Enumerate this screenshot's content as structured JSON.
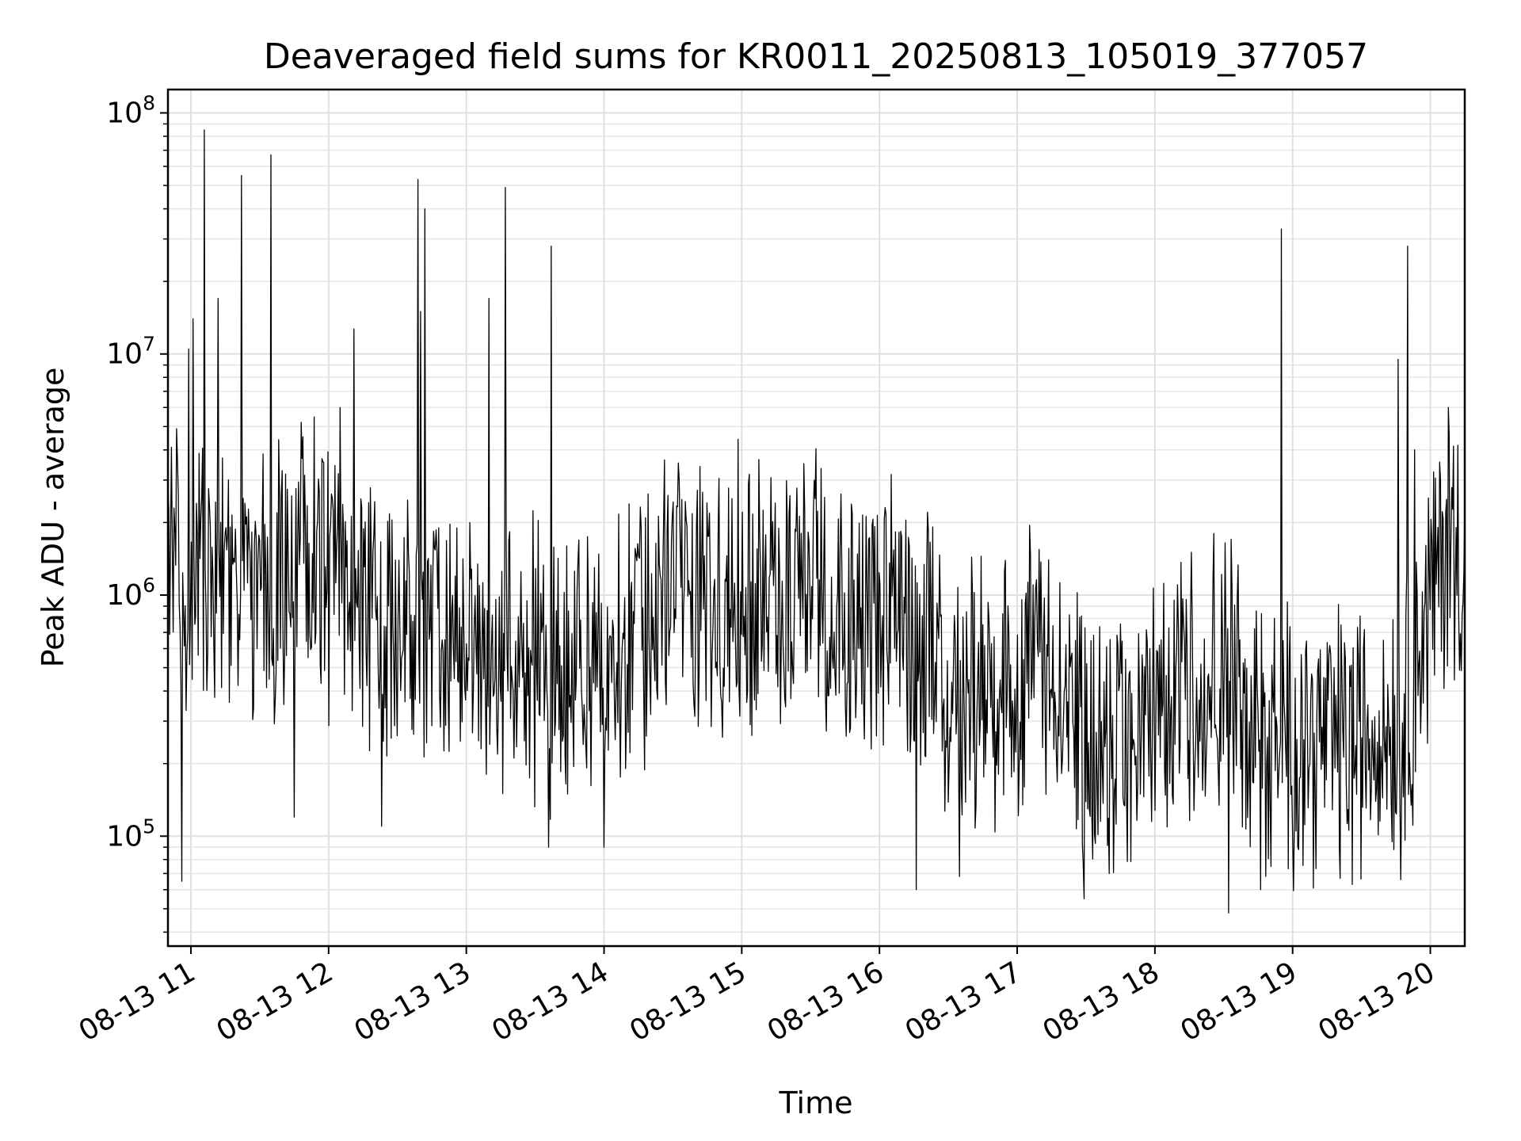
{
  "chart_data": {
    "type": "line",
    "title": "Deaveraged field sums for KR0011_20250813_105019_377057",
    "xlabel": "Time",
    "ylabel": "Peak ADU - average",
    "yscale": "log",
    "ylim": [
      35000,
      125000000
    ],
    "xlim": [
      "2025-08-13 10:50",
      "2025-08-13 20:15"
    ],
    "grid": true,
    "line_color": "#000000",
    "x_ticks": [
      {
        "value": "2025-08-13 11:00",
        "label": "08-13 11"
      },
      {
        "value": "2025-08-13 12:00",
        "label": "08-13 12"
      },
      {
        "value": "2025-08-13 13:00",
        "label": "08-13 13"
      },
      {
        "value": "2025-08-13 14:00",
        "label": "08-13 14"
      },
      {
        "value": "2025-08-13 15:00",
        "label": "08-13 15"
      },
      {
        "value": "2025-08-13 16:00",
        "label": "08-13 16"
      },
      {
        "value": "2025-08-13 17:00",
        "label": "08-13 17"
      },
      {
        "value": "2025-08-13 18:00",
        "label": "08-13 18"
      },
      {
        "value": "2025-08-13 19:00",
        "label": "08-13 19"
      },
      {
        "value": "2025-08-13 20:00",
        "label": "08-13 20"
      }
    ],
    "y_ticks": [
      {
        "value": 100000,
        "base": "10",
        "exp": "5"
      },
      {
        "value": 1000000,
        "base": "10",
        "exp": "6"
      },
      {
        "value": 10000000,
        "base": "10",
        "exp": "7"
      },
      {
        "value": 100000000,
        "base": "10",
        "exp": "8"
      }
    ],
    "baseline": [
      {
        "t": "2025-08-13 10:50",
        "y": 1300000
      },
      {
        "t": "2025-08-13 11:10",
        "y": 1000000
      },
      {
        "t": "2025-08-13 11:30",
        "y": 900000
      },
      {
        "t": "2025-08-13 11:50",
        "y": 1500000
      },
      {
        "t": "2025-08-13 12:10",
        "y": 1000000
      },
      {
        "t": "2025-08-13 12:30",
        "y": 700000
      },
      {
        "t": "2025-08-13 12:50",
        "y": 600000
      },
      {
        "t": "2025-08-13 13:10",
        "y": 600000
      },
      {
        "t": "2025-08-13 13:30",
        "y": 500000
      },
      {
        "t": "2025-08-13 13:50",
        "y": 500000
      },
      {
        "t": "2025-08-13 14:10",
        "y": 600000
      },
      {
        "t": "2025-08-13 14:30",
        "y": 1200000
      },
      {
        "t": "2025-08-13 14:50",
        "y": 1000000
      },
      {
        "t": "2025-08-13 15:10",
        "y": 1000000
      },
      {
        "t": "2025-08-13 15:30",
        "y": 1100000
      },
      {
        "t": "2025-08-13 15:50",
        "y": 900000
      },
      {
        "t": "2025-08-13 16:10",
        "y": 700000
      },
      {
        "t": "2025-08-13 16:30",
        "y": 450000
      },
      {
        "t": "2025-08-13 16:50",
        "y": 350000
      },
      {
        "t": "2025-08-13 17:10",
        "y": 550000
      },
      {
        "t": "2025-08-13 17:30",
        "y": 250000
      },
      {
        "t": "2025-08-13 17:50",
        "y": 200000
      },
      {
        "t": "2025-08-13 18:10",
        "y": 450000
      },
      {
        "t": "2025-08-13 18:30",
        "y": 450000
      },
      {
        "t": "2025-08-13 18:50",
        "y": 250000
      },
      {
        "t": "2025-08-13 19:10",
        "y": 250000
      },
      {
        "t": "2025-08-13 19:30",
        "y": 250000
      },
      {
        "t": "2025-08-13 19:50",
        "y": 350000
      },
      {
        "t": "2025-08-13 20:05",
        "y": 1500000
      },
      {
        "t": "2025-08-13 20:15",
        "y": 1600000
      }
    ],
    "spikes": [
      {
        "t": "2025-08-13 10:59",
        "y": 10500000
      },
      {
        "t": "2025-08-13 11:01",
        "y": 14000000
      },
      {
        "t": "2025-08-13 11:06",
        "y": 85000000
      },
      {
        "t": "2025-08-13 11:12",
        "y": 17000000
      },
      {
        "t": "2025-08-13 11:22",
        "y": 55000000
      },
      {
        "t": "2025-08-13 11:35",
        "y": 67000000
      },
      {
        "t": "2025-08-13 12:05",
        "y": 6000000
      },
      {
        "t": "2025-08-13 12:11",
        "y": 12700000
      },
      {
        "t": "2025-08-13 12:39",
        "y": 53000000
      },
      {
        "t": "2025-08-13 12:40",
        "y": 15000000
      },
      {
        "t": "2025-08-13 12:42",
        "y": 40000000
      },
      {
        "t": "2025-08-13 13:10",
        "y": 17000000
      },
      {
        "t": "2025-08-13 13:17",
        "y": 49000000
      },
      {
        "t": "2025-08-13 13:37",
        "y": 28000000
      },
      {
        "t": "2025-08-13 18:55",
        "y": 33000000
      },
      {
        "t": "2025-08-13 19:46",
        "y": 9500000
      },
      {
        "t": "2025-08-13 19:50",
        "y": 28000000
      },
      {
        "t": "2025-08-13 19:53",
        "y": 4000000
      },
      {
        "t": "2025-08-13 20:08",
        "y": 6000000
      }
    ],
    "dips": [
      {
        "t": "2025-08-13 10:56",
        "y": 65000.0
      },
      {
        "t": "2025-08-13 11:45",
        "y": 120000
      },
      {
        "t": "2025-08-13 12:23",
        "y": 110000
      },
      {
        "t": "2025-08-13 13:36",
        "y": 90000
      },
      {
        "t": "2025-08-13 14:00",
        "y": 90000
      },
      {
        "t": "2025-08-13 16:16",
        "y": 60000
      },
      {
        "t": "2025-08-13 16:35",
        "y": 68000
      },
      {
        "t": "2025-08-13 17:29",
        "y": 55000
      },
      {
        "t": "2025-08-13 17:40",
        "y": 70000
      },
      {
        "t": "2025-08-13 18:32",
        "y": 48000
      },
      {
        "t": "2025-08-13 18:46",
        "y": 60000
      },
      {
        "t": "2025-08-13 19:26",
        "y": 63000
      },
      {
        "t": "2025-08-13 19:47",
        "y": 66000
      }
    ]
  }
}
